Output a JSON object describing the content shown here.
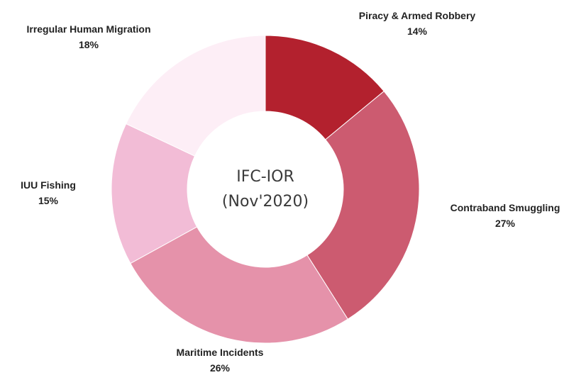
{
  "chart_data": {
    "type": "pie",
    "variant": "donut",
    "center_title": "IFC-IOR",
    "center_subtitle": "(Nov'2020)",
    "slices": [
      {
        "label": "Piracy & Armed Robbery",
        "value": 14,
        "value_label": "14%",
        "color": "#b3212e"
      },
      {
        "label": "Contraband Smuggling",
        "value": 27,
        "value_label": "27%",
        "color": "#cc5b70"
      },
      {
        "label": "Maritime Incidents",
        "value": 26,
        "value_label": "26%",
        "color": "#e592aa"
      },
      {
        "label": "IUU Fishing",
        "value": 15,
        "value_label": "15%",
        "color": "#f2bcd6"
      },
      {
        "label": "Irregular Human Migration",
        "value": 18,
        "value_label": "18%",
        "color": "#fdeef6"
      }
    ],
    "start_angle": "12 o'clock",
    "direction": "clockwise"
  }
}
